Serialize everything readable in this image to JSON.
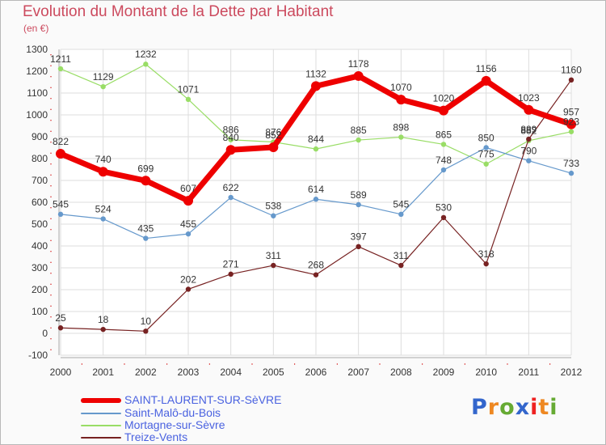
{
  "chart_data": {
    "type": "line",
    "title": "Evolution du Montant de la Dette par Habitant",
    "unit_label": "(en €)",
    "x": [
      "2000",
      "2001",
      "2002",
      "2003",
      "2004",
      "2005",
      "2006",
      "2007",
      "2008",
      "2009",
      "2010",
      "2011",
      "2012"
    ],
    "ylim": [
      -100,
      1300
    ],
    "yticks": [
      -100,
      0,
      100,
      200,
      300,
      400,
      500,
      600,
      700,
      800,
      900,
      1000,
      1100,
      1200,
      1300
    ],
    "grid": true,
    "legend_position": "bottom-left",
    "series": [
      {
        "name": "Mortagne-sur-Sèvre",
        "color": "#99dd66",
        "width": 1.2,
        "radius": 3.2,
        "values": [
          1211,
          1129,
          1232,
          1071,
          886,
          876,
          844,
          885,
          898,
          865,
          775,
          882,
          923
        ]
      },
      {
        "name": "Saint-Malô-du-Bois",
        "color": "#6699cc",
        "width": 1.2,
        "radius": 3.2,
        "values": [
          545,
          524,
          435,
          455,
          622,
          538,
          614,
          589,
          545,
          748,
          850,
          790,
          733
        ]
      },
      {
        "name": "Treize-Vents",
        "color": "#772222",
        "width": 1.2,
        "radius": 3.2,
        "values": [
          25,
          18,
          10,
          202,
          271,
          311,
          268,
          397,
          311,
          530,
          318,
          889,
          1160
        ]
      },
      {
        "name": "SAINT-LAURENT-SUR-SèVRE",
        "color": "#ee0000",
        "width": 7,
        "radius": 6,
        "values": [
          822,
          740,
          699,
          607,
          840,
          852,
          1132,
          1178,
          1070,
          1020,
          1156,
          1023,
          957
        ]
      }
    ]
  },
  "legend": [
    {
      "label": "SAINT-LAURENT-SUR-SèVRE",
      "color": "#ee0000",
      "thickness": 6
    },
    {
      "label": "Saint-Malô-du-Bois",
      "color": "#6699cc",
      "thickness": 2
    },
    {
      "label": "Mortagne-sur-Sèvre",
      "color": "#99dd66",
      "thickness": 2
    },
    {
      "label": "Treize-Vents",
      "color": "#772222",
      "thickness": 2
    }
  ],
  "logo": {
    "letters": [
      "P",
      "r",
      "o",
      "x",
      "i",
      "t",
      "i"
    ],
    "colors": [
      "#3366cc",
      "#ee8822",
      "#66aa33",
      "#3366cc",
      "#ee2222",
      "#ee8822",
      "#66aa33"
    ]
  }
}
